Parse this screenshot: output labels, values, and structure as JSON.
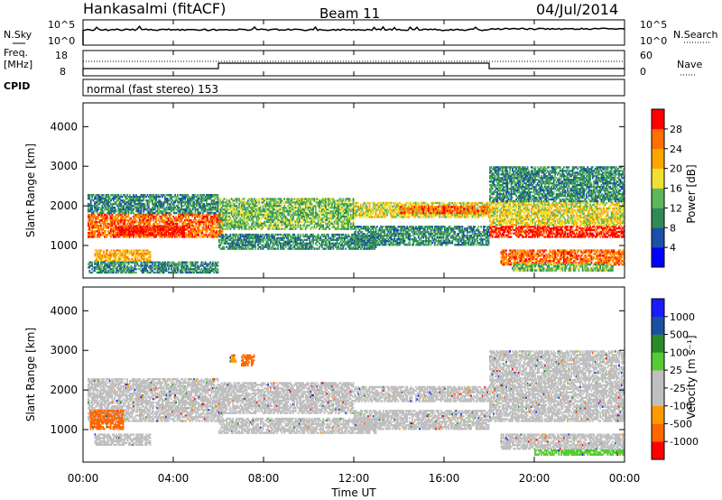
{
  "header": {
    "station": "Hankasalmi (fitACF)",
    "beam": "Beam 11",
    "date": "04/Jul/2014"
  },
  "nsky_panel": {
    "left_label": "N.Sky",
    "right_label": "N.Search",
    "tick_top": "10^5",
    "tick_bottom": "10^0",
    "right_tick_top": "10^5",
    "right_tick_bottom": "10^0"
  },
  "freq_panel": {
    "left_label_1": "Freq.",
    "left_label_2": "[MHz]",
    "right_label": "Nave",
    "tick_top": "18",
    "tick_bottom": "8",
    "right_tick_top": "60",
    "right_tick_bottom": "0"
  },
  "cpid": {
    "label": "CPID",
    "program": "normal (fast stereo) 153"
  },
  "colors": {
    "power": [
      "#0000ff",
      "#1b4fa8",
      "#2e8b57",
      "#5cb85c",
      "#f0e130",
      "#ffa500",
      "#ff7000",
      "#ff0000"
    ],
    "velocity": [
      "#ff0000",
      "#ff6600",
      "#ff9900",
      "#bfbfbf",
      "#bfbfbf",
      "#55cc33",
      "#2a8a2a",
      "#1a50a0",
      "#1a1aff"
    ]
  },
  "chart_data": [
    {
      "type": "heatmap",
      "name": "power",
      "ylabel": "Slant Range [km]",
      "ylim": [
        180,
        4600
      ],
      "yticks": [
        "1000",
        "2000",
        "3000",
        "4000"
      ],
      "ytick_values": [
        1000,
        2000,
        3000,
        4000
      ],
      "xlim": [
        0,
        24
      ],
      "colorbar_label": "Power [dB]",
      "colorbar_ticks": [
        "4",
        "8",
        "12",
        "16",
        "20",
        "24",
        "28"
      ],
      "colorbar_range": [
        0,
        32
      ],
      "bands": [
        {
          "t0": 0.2,
          "t1": 6.2,
          "r0": 1200,
          "r1": 1800,
          "level": 6
        },
        {
          "t0": 1.5,
          "t1": 4.5,
          "r0": 1250,
          "r1": 1500,
          "level": 7
        },
        {
          "t0": 0.2,
          "t1": 6.0,
          "r0": 1800,
          "r1": 2300,
          "level": 2
        },
        {
          "t0": 0.5,
          "t1": 3.0,
          "r0": 600,
          "r1": 900,
          "level": 5
        },
        {
          "t0": 0.2,
          "t1": 6.0,
          "r0": 300,
          "r1": 600,
          "level": 2
        },
        {
          "t0": 6.0,
          "t1": 12.0,
          "r0": 1400,
          "r1": 2200,
          "level": 3
        },
        {
          "t0": 6.0,
          "t1": 13.0,
          "r0": 900,
          "r1": 1300,
          "level": 2
        },
        {
          "t0": 12.0,
          "t1": 18.0,
          "r0": 1700,
          "r1": 2100,
          "level": 4
        },
        {
          "t0": 14.0,
          "t1": 18.0,
          "r0": 1800,
          "r1": 2000,
          "level": 6
        },
        {
          "t0": 12.0,
          "t1": 18.0,
          "r0": 1000,
          "r1": 1500,
          "level": 2
        },
        {
          "t0": 18.0,
          "t1": 24.0,
          "r0": 1200,
          "r1": 1500,
          "level": 7
        },
        {
          "t0": 18.0,
          "t1": 24.0,
          "r0": 1500,
          "r1": 2100,
          "level": 4
        },
        {
          "t0": 18.0,
          "t1": 24.0,
          "r0": 2100,
          "r1": 3000,
          "level": 2
        },
        {
          "t0": 18.5,
          "t1": 24.0,
          "r0": 500,
          "r1": 900,
          "level": 6
        },
        {
          "t0": 19.0,
          "t1": 23.5,
          "r0": 350,
          "r1": 550,
          "level": 3
        }
      ]
    },
    {
      "type": "heatmap",
      "name": "velocity",
      "ylabel": "Slant Range [km]",
      "ylim": [
        180,
        4600
      ],
      "yticks": [
        "1000",
        "2000",
        "3000",
        "4000"
      ],
      "ytick_values": [
        1000,
        2000,
        3000,
        4000
      ],
      "xlim": [
        0,
        24
      ],
      "xticks": [
        "00:00",
        "04:00",
        "08:00",
        "12:00",
        "16:00",
        "20:00",
        "00:00"
      ],
      "xtick_values": [
        0,
        4,
        8,
        12,
        16,
        20,
        24
      ],
      "xlabel": "Time UT",
      "colorbar_label": "Velocity [m s⁻¹]",
      "colorbar_ticks": [
        "-1000",
        "-500",
        "-100",
        "-25",
        "25",
        "100",
        "500",
        "1000"
      ],
      "bands": [
        {
          "t0": 0.2,
          "t1": 6.2,
          "r0": 1200,
          "r1": 1800,
          "level": 3
        },
        {
          "t0": 0.2,
          "t1": 6.0,
          "r0": 1800,
          "r1": 2300,
          "level": 3
        },
        {
          "t0": 0.5,
          "t1": 3.0,
          "r0": 600,
          "r1": 900,
          "level": 3
        },
        {
          "t0": 0.3,
          "t1": 1.8,
          "r0": 1000,
          "r1": 1500,
          "level": 1
        },
        {
          "t0": 6.0,
          "t1": 12.0,
          "r0": 1400,
          "r1": 2200,
          "level": 3
        },
        {
          "t0": 6.0,
          "t1": 13.0,
          "r0": 900,
          "r1": 1300,
          "level": 3
        },
        {
          "t0": 12.0,
          "t1": 18.0,
          "r0": 1700,
          "r1": 2100,
          "level": 3
        },
        {
          "t0": 12.0,
          "t1": 18.0,
          "r0": 1000,
          "r1": 1500,
          "level": 3
        },
        {
          "t0": 18.0,
          "t1": 24.0,
          "r0": 1200,
          "r1": 2100,
          "level": 3
        },
        {
          "t0": 18.0,
          "t1": 24.0,
          "r0": 2100,
          "r1": 3000,
          "level": 3
        },
        {
          "t0": 18.5,
          "t1": 24.0,
          "r0": 500,
          "r1": 900,
          "level": 3
        },
        {
          "t0": 7.0,
          "t1": 7.6,
          "r0": 2600,
          "r1": 2900,
          "level": 1
        },
        {
          "t0": 6.5,
          "t1": 6.8,
          "r0": 2700,
          "r1": 2900,
          "level": 2
        },
        {
          "t0": 20.0,
          "t1": 24.0,
          "r0": 350,
          "r1": 500,
          "level": 5
        }
      ]
    }
  ]
}
